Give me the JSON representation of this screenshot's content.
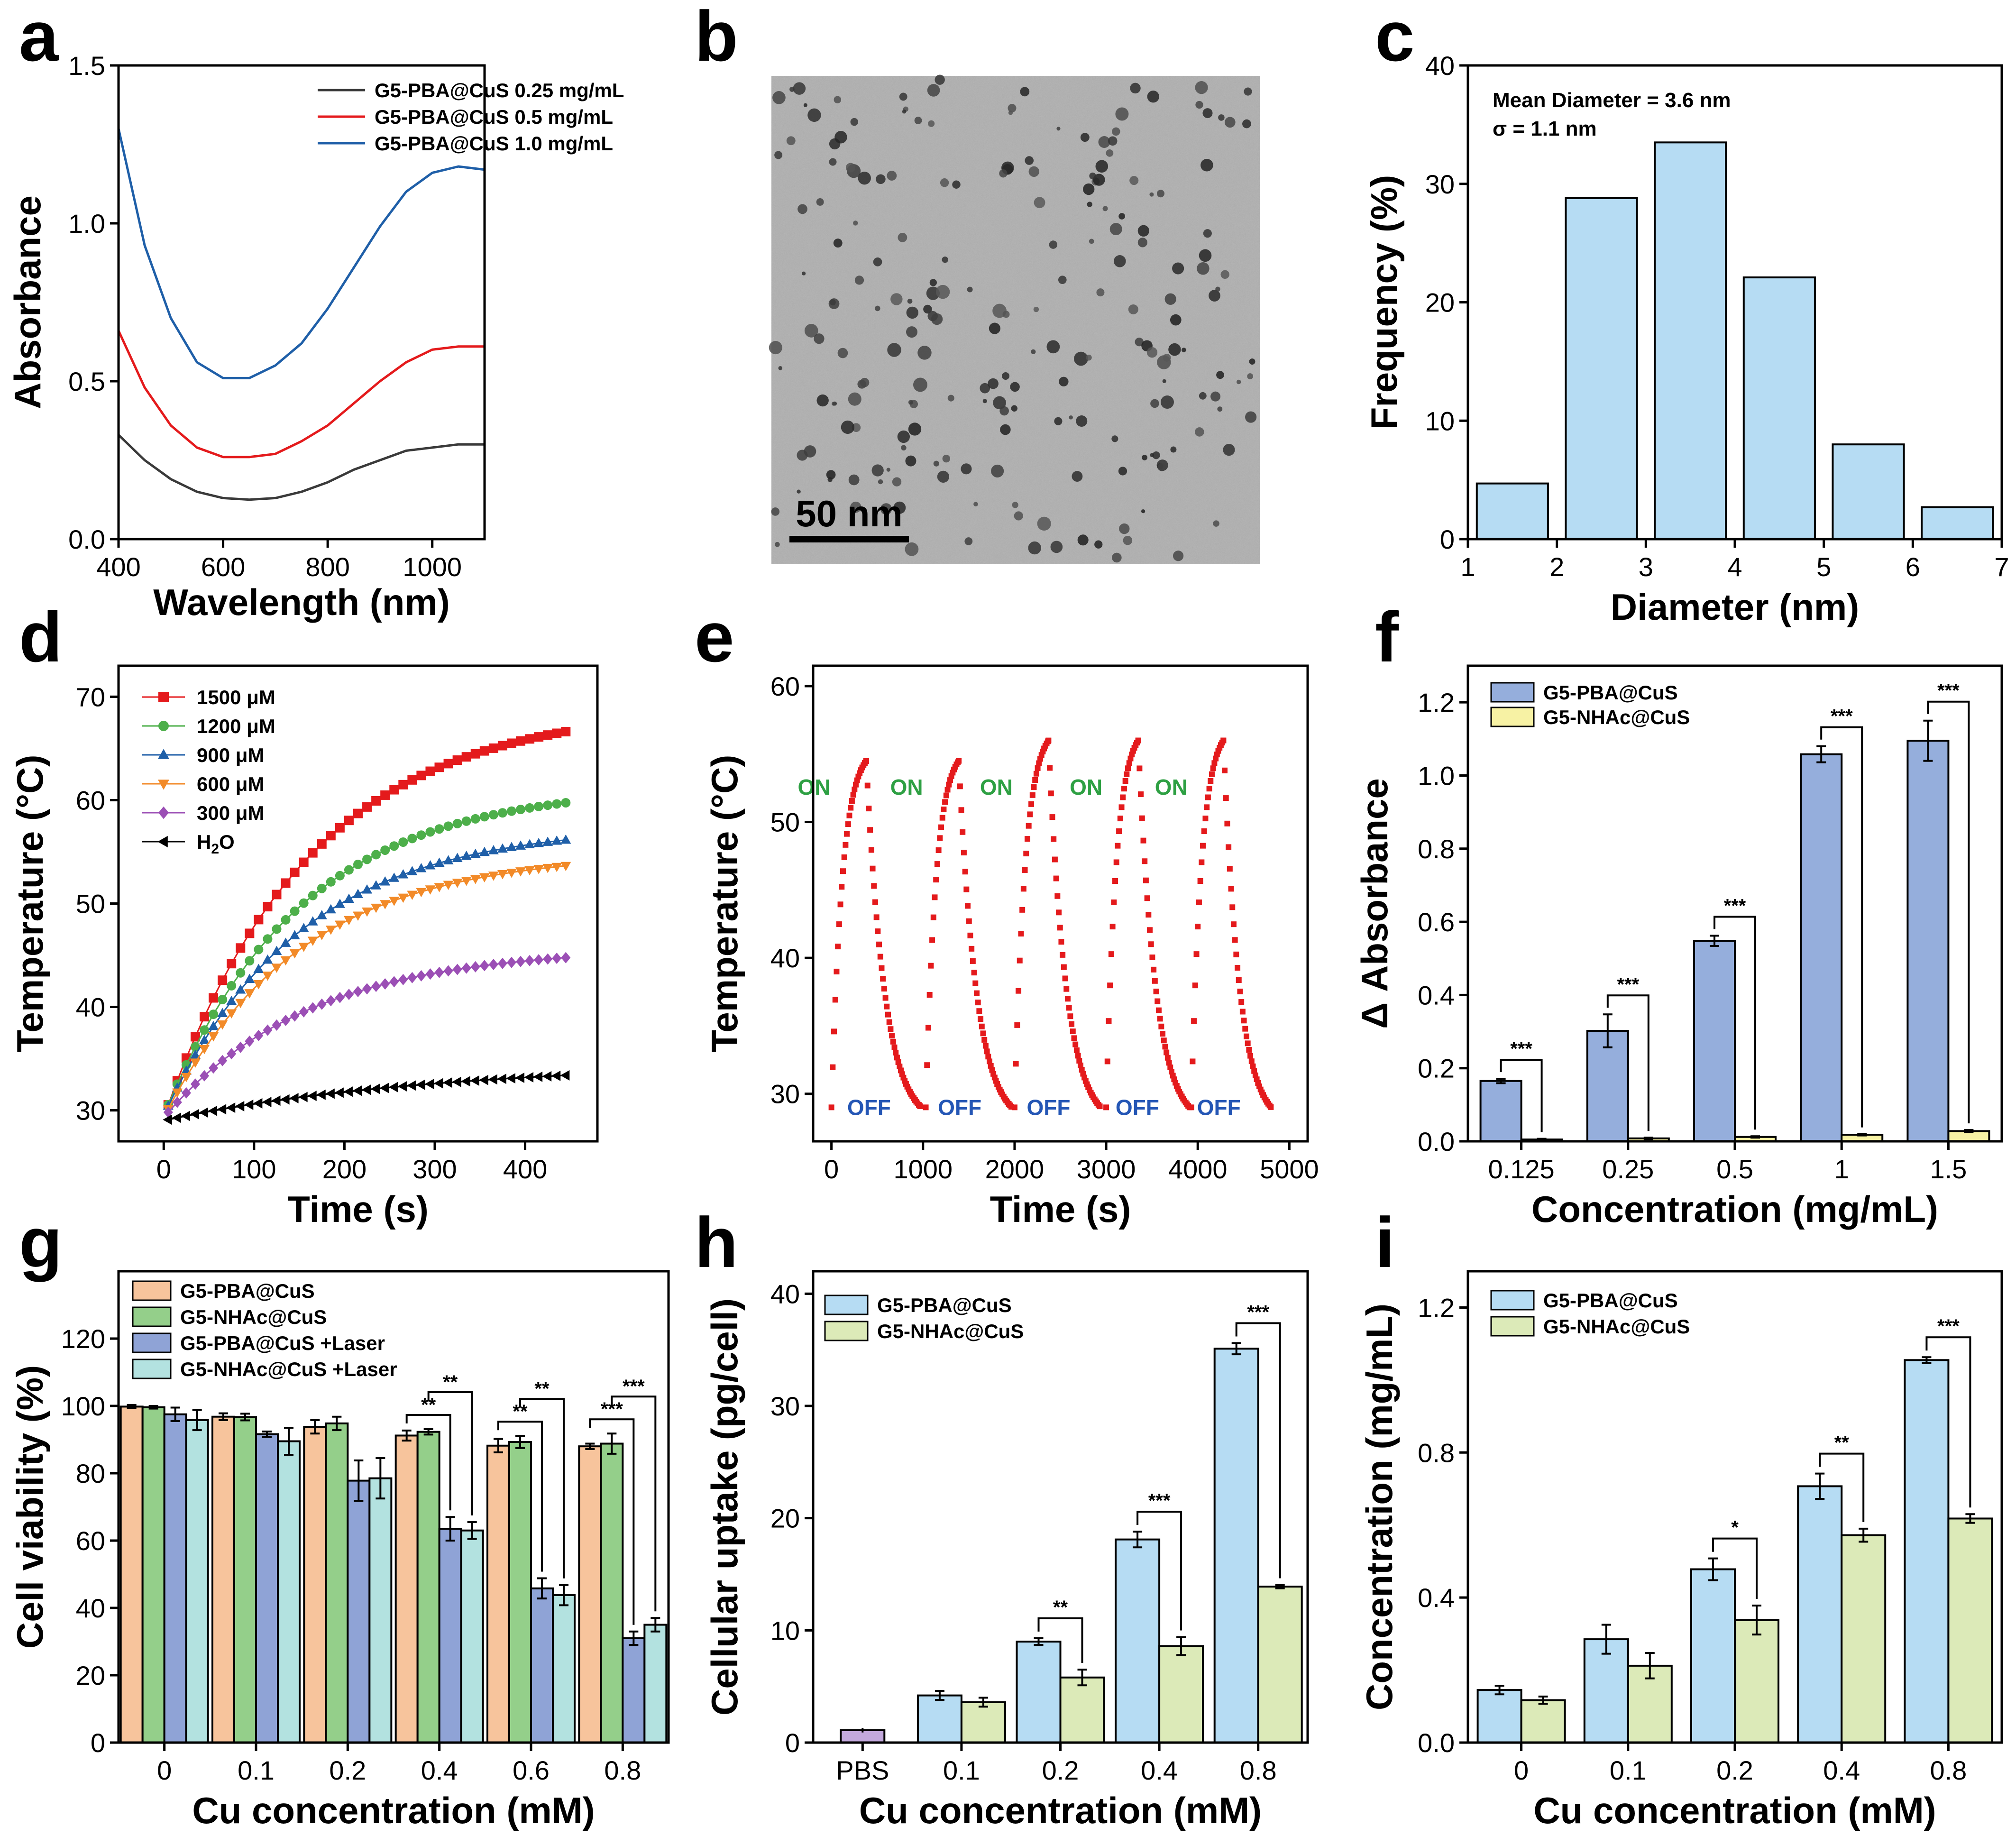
{
  "panels": [
    {
      "id": "a",
      "label": "a"
    },
    {
      "id": "b",
      "label": "b"
    },
    {
      "id": "c",
      "label": "c"
    },
    {
      "id": "d",
      "label": "d"
    },
    {
      "id": "e",
      "label": "e"
    },
    {
      "id": "f",
      "label": "f"
    },
    {
      "id": "g",
      "label": "g"
    },
    {
      "id": "h",
      "label": "h"
    },
    {
      "id": "i",
      "label": "i"
    }
  ],
  "colors": {
    "dark_gray": "#3a3a3a",
    "red": "#e41a1c",
    "blue": "#1f5fa8",
    "green": "#4daf4a",
    "orange": "#f28a28",
    "purple": "#9b4fb5",
    "black": "#000000",
    "light_blue": "#b6dcf3",
    "bar_blue": "#95aedc",
    "bar_yellow": "#f7f2a4",
    "bar_orange": "#f7c49c",
    "bar_green": "#94cf8a",
    "bar_mid_blue": "#8fa3d6",
    "bar_cyan": "#b3e2e0",
    "bar_lightgreen": "#dceab8",
    "bar_purple": "#c3a9dd",
    "on_green": "#2ea043",
    "off_blue": "#2456b5"
  },
  "chart_data": [
    {
      "panel": "a",
      "type": "line",
      "title": "",
      "xlabel": "Wavelength (nm)",
      "ylabel": "Absorbance",
      "xlim": [
        400,
        1100
      ],
      "ylim": [
        0,
        1.5
      ],
      "xticks": [
        400,
        600,
        800,
        1000
      ],
      "yticks": [
        0.0,
        0.5,
        1.0,
        1.5
      ],
      "xtick_labels": [
        "400",
        "600",
        "800",
        "1000"
      ],
      "ytick_labels": [
        "0.0",
        "0.5",
        "1.0",
        "1.5"
      ],
      "legend": "top-right",
      "series": [
        {
          "name": "G5-PBA@CuS 0.25 mg/mL",
          "color": "#3a3a3a",
          "x": [
            400,
            450,
            500,
            550,
            600,
            650,
            700,
            750,
            800,
            850,
            900,
            950,
            1000,
            1050,
            1100
          ],
          "y": [
            0.33,
            0.25,
            0.19,
            0.15,
            0.13,
            0.125,
            0.13,
            0.15,
            0.18,
            0.22,
            0.25,
            0.28,
            0.29,
            0.3,
            0.3
          ]
        },
        {
          "name": "G5-PBA@CuS 0.5 mg/mL",
          "color": "#e41a1c",
          "x": [
            400,
            450,
            500,
            550,
            600,
            650,
            700,
            750,
            800,
            850,
            900,
            950,
            1000,
            1050,
            1100
          ],
          "y": [
            0.66,
            0.48,
            0.36,
            0.29,
            0.26,
            0.26,
            0.27,
            0.31,
            0.36,
            0.43,
            0.5,
            0.56,
            0.6,
            0.61,
            0.61
          ]
        },
        {
          "name": "G5-PBA@CuS 1.0 mg/mL",
          "color": "#1f5fa8",
          "x": [
            400,
            450,
            500,
            550,
            600,
            650,
            700,
            750,
            800,
            850,
            900,
            950,
            1000,
            1050,
            1100
          ],
          "y": [
            1.3,
            0.93,
            0.7,
            0.56,
            0.51,
            0.51,
            0.55,
            0.62,
            0.73,
            0.86,
            0.99,
            1.1,
            1.16,
            1.18,
            1.17
          ]
        }
      ]
    },
    {
      "panel": "b",
      "type": "image",
      "scale_bar_label": "50 nm"
    },
    {
      "panel": "c",
      "type": "bar",
      "title": "",
      "xlabel": "Diameter (nm)",
      "ylabel": "Frequency (%)",
      "xlim": [
        1,
        7
      ],
      "ylim": [
        0,
        40
      ],
      "xticks": [
        1,
        2,
        3,
        4,
        5,
        6,
        7
      ],
      "yticks": [
        0,
        10,
        20,
        30,
        40
      ],
      "bins": [
        [
          1.1,
          1.9
        ],
        [
          2.1,
          2.9
        ],
        [
          3.1,
          3.9
        ],
        [
          4.1,
          4.9
        ],
        [
          5.1,
          5.9
        ],
        [
          6.1,
          6.9
        ]
      ],
      "values": [
        4.7,
        28.8,
        33.5,
        22.1,
        8.0,
        2.7
      ],
      "color": "#b6dcf3",
      "annotations": [
        "Mean Diameter = 3.6 nm",
        "σ = 1.1 nm"
      ]
    },
    {
      "panel": "d",
      "type": "line",
      "title": "",
      "xlabel": "Time (s)",
      "ylabel": "Temperature (°C)",
      "xlim": [
        -50,
        480
      ],
      "ylim": [
        27,
        73
      ],
      "xticks": [
        0,
        100,
        200,
        300,
        400
      ],
      "yticks": [
        30,
        40,
        50,
        60,
        70
      ],
      "legend": "top-left",
      "series": [
        {
          "name": "1500 μM",
          "color": "#e41a1c",
          "marker": "square",
          "start": 29.3,
          "end": 66.7,
          "tau": 160
        },
        {
          "name": "1200 μM",
          "color": "#4daf4a",
          "marker": "circle",
          "start": 29.5,
          "end": 59.8,
          "tau": 150
        },
        {
          "name": "900 μM",
          "color": "#1f5fa8",
          "marker": "triangle-up",
          "start": 29.5,
          "end": 56.2,
          "tau": 150
        },
        {
          "name": "600 μM",
          "color": "#f28a28",
          "marker": "triangle-down",
          "start": 29.3,
          "end": 53.7,
          "tau": 150
        },
        {
          "name": "300 μM",
          "color": "#9b4fb5",
          "marker": "diamond",
          "start": 29.3,
          "end": 44.8,
          "tau": 160
        },
        {
          "name": "H",
          "name_sub": "2",
          "name_tail": "O",
          "color": "#000000",
          "marker": "triangle-left",
          "start": 29.0,
          "end": 33.4,
          "tau": 300
        }
      ]
    },
    {
      "panel": "e",
      "type": "scatter",
      "title": "",
      "xlabel": "Time (s)",
      "ylabel": "Temperature (°C)",
      "xlim": [
        -200,
        5200
      ],
      "ylim": [
        26.5,
        61.5
      ],
      "xticks": [
        0,
        1000,
        2000,
        3000,
        4000,
        5000
      ],
      "yticks": [
        30,
        40,
        50,
        60
      ],
      "color": "#e41a1c",
      "cycles": [
        {
          "start": 0,
          "peak_t": 380,
          "end": 980,
          "low": 29,
          "high": 54.5
        },
        {
          "start": 1030,
          "peak_t": 1390,
          "end": 1970,
          "low": 29,
          "high": 54.5
        },
        {
          "start": 2000,
          "peak_t": 2370,
          "end": 2940,
          "low": 29,
          "high": 56
        },
        {
          "start": 3000,
          "peak_t": 3350,
          "end": 3910,
          "low": 29,
          "high": 56
        },
        {
          "start": 3930,
          "peak_t": 4280,
          "end": 4800,
          "low": 29,
          "high": 56
        }
      ],
      "on_label": "ON",
      "off_label": "OFF"
    },
    {
      "panel": "f",
      "type": "bar",
      "title": "",
      "xlabel": "Concentration (mg/mL)",
      "ylabel": "Δ Absorbance",
      "ylim": [
        0,
        1.3
      ],
      "yticks": [
        0.0,
        0.2,
        0.4,
        0.6,
        0.8,
        1.0,
        1.2
      ],
      "categories": [
        "0.125",
        "0.25",
        "0.5",
        "1",
        "1.5"
      ],
      "legend": "top-left",
      "series": [
        {
          "name": "G5-PBA@CuS",
          "color": "#95aedc",
          "values": [
            0.165,
            0.302,
            0.548,
            1.058,
            1.095
          ],
          "err": [
            0.006,
            0.045,
            0.014,
            0.022,
            0.055
          ]
        },
        {
          "name": "G5-NHAc@CuS",
          "color": "#f7f2a4",
          "values": [
            0.005,
            0.008,
            0.012,
            0.018,
            0.028
          ],
          "err": [
            0.002,
            0.002,
            0.002,
            0.002,
            0.003
          ]
        }
      ],
      "significance": [
        {
          "i": 0,
          "a": 0,
          "b": 1,
          "label": "***"
        },
        {
          "i": 1,
          "a": 0,
          "b": 1,
          "label": "***"
        },
        {
          "i": 2,
          "a": 0,
          "b": 1,
          "label": "***"
        },
        {
          "i": 3,
          "a": 0,
          "b": 1,
          "label": "***"
        },
        {
          "i": 4,
          "a": 0,
          "b": 1,
          "label": "***"
        }
      ]
    },
    {
      "panel": "g",
      "type": "bar",
      "title": "",
      "xlabel": "Cu concentration (mM)",
      "ylabel": "Cell viability (%)",
      "ylim": [
        0,
        140
      ],
      "yticks": [
        0,
        20,
        40,
        60,
        80,
        100,
        120
      ],
      "categories": [
        "0",
        "0.1",
        "0.2",
        "0.4",
        "0.6",
        "0.8"
      ],
      "legend": "top-left",
      "series": [
        {
          "name": "G5-PBA@CuS",
          "color": "#f7c49c",
          "values": [
            99.8,
            96.8,
            93.8,
            91.2,
            88.2,
            88.0
          ],
          "err": [
            0.5,
            1.0,
            2.0,
            1.5,
            2.0,
            0.8
          ]
        },
        {
          "name": "G5-NHAc@CuS",
          "color": "#94cf8a",
          "values": [
            99.6,
            96.7,
            94.8,
            92.3,
            89.3,
            88.8
          ],
          "err": [
            0.4,
            1.0,
            2.0,
            0.8,
            1.8,
            3.0
          ]
        },
        {
          "name": "G5-PBA@CuS +Laser",
          "color": "#8fa3d6",
          "values": [
            97.5,
            91.6,
            77.8,
            63.5,
            45.8,
            31.0
          ],
          "err": [
            2.0,
            0.8,
            6.0,
            3.5,
            3.0,
            2.0
          ]
        },
        {
          "name": "G5-NHAc@CuS +Laser",
          "color": "#b3e2e0",
          "values": [
            95.8,
            89.5,
            78.5,
            63.0,
            43.8,
            35.0
          ],
          "err": [
            3.0,
            4.0,
            6.0,
            2.5,
            3.0,
            2.0
          ]
        }
      ],
      "significance": [
        {
          "i": 3,
          "a": 0,
          "b": 2,
          "label": "**",
          "level": 0
        },
        {
          "i": 3,
          "a": 1,
          "b": 3,
          "label": "**",
          "level": 1
        },
        {
          "i": 4,
          "a": 0,
          "b": 2,
          "label": "**",
          "level": 0
        },
        {
          "i": 4,
          "a": 1,
          "b": 3,
          "label": "**",
          "level": 1
        },
        {
          "i": 5,
          "a": 0,
          "b": 2,
          "label": "***",
          "level": 0
        },
        {
          "i": 5,
          "a": 1,
          "b": 3,
          "label": "***",
          "level": 1
        }
      ]
    },
    {
      "panel": "h",
      "type": "bar",
      "title": "",
      "xlabel": "Cu concentration (mM)",
      "ylabel": "Cellular uptake (pg/cell)",
      "ylim": [
        0,
        42
      ],
      "yticks": [
        0,
        10,
        20,
        30,
        40
      ],
      "categories": [
        "PBS",
        "0.1",
        "0.2",
        "0.4",
        "0.8"
      ],
      "legend": "top-left",
      "pbs": {
        "value": 1.1,
        "err": 0.2,
        "color": "#c3a9dd"
      },
      "series": [
        {
          "name": "G5-PBA@CuS",
          "color": "#b6dcf3",
          "values": [
            null,
            4.2,
            9.0,
            18.1,
            35.1
          ],
          "err": [
            null,
            0.4,
            0.3,
            0.7,
            0.5
          ]
        },
        {
          "name": "G5-NHAc@CuS",
          "color": "#dceab8",
          "values": [
            null,
            3.6,
            5.8,
            8.6,
            13.9
          ],
          "err": [
            null,
            0.4,
            0.7,
            0.8,
            0.15
          ]
        }
      ],
      "significance": [
        {
          "i": 2,
          "a": 0,
          "b": 1,
          "label": "**"
        },
        {
          "i": 3,
          "a": 0,
          "b": 1,
          "label": "***"
        },
        {
          "i": 4,
          "a": 0,
          "b": 1,
          "label": "***"
        }
      ]
    },
    {
      "panel": "i",
      "type": "bar",
      "title": "",
      "xlabel": "Cu concentration (mM)",
      "ylabel": "Concentration (mg/mL)",
      "ylim": [
        0,
        1.3
      ],
      "yticks": [
        0.0,
        0.4,
        0.8,
        1.2
      ],
      "categories": [
        "0",
        "0.1",
        "0.2",
        "0.4",
        "0.8"
      ],
      "legend": "top-left",
      "series": [
        {
          "name": "G5-PBA@CuS",
          "color": "#b6dcf3",
          "values": [
            0.145,
            0.285,
            0.478,
            0.707,
            1.055
          ],
          "err": [
            0.012,
            0.04,
            0.03,
            0.035,
            0.008
          ]
        },
        {
          "name": "G5-NHAc@CuS",
          "color": "#dceab8",
          "values": [
            0.117,
            0.212,
            0.338,
            0.572,
            0.618
          ],
          "err": [
            0.01,
            0.035,
            0.04,
            0.018,
            0.012
          ]
        }
      ],
      "significance": [
        {
          "i": 2,
          "a": 0,
          "b": 1,
          "label": "*"
        },
        {
          "i": 3,
          "a": 0,
          "b": 1,
          "label": "**"
        },
        {
          "i": 4,
          "a": 0,
          "b": 1,
          "label": "***"
        }
      ]
    }
  ]
}
